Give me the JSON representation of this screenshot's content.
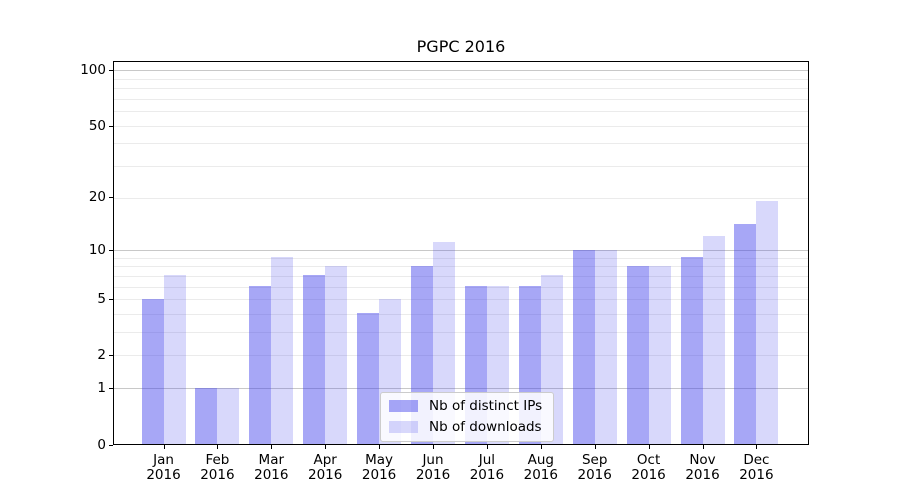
{
  "title": "PGPC 2016",
  "chart_data": {
    "type": "bar",
    "title": "PGPC 2016",
    "categories": [
      "Jan",
      "Feb",
      "Mar",
      "Apr",
      "May",
      "Jun",
      "Jul",
      "Aug",
      "Sep",
      "Oct",
      "Nov",
      "Dec"
    ],
    "x_year": "2016",
    "series": [
      {
        "name": "Nb of distinct IPs",
        "color": "rgba(60,60,234,0.45)",
        "values": [
          5,
          1,
          6,
          7,
          4,
          8,
          6,
          6,
          10,
          8,
          9,
          14
        ]
      },
      {
        "name": "Nb of downloads",
        "color": "rgba(60,60,234,0.20)",
        "values": [
          7,
          1,
          9,
          8,
          5,
          11,
          6,
          7,
          10,
          8,
          12,
          19
        ]
      }
    ],
    "yscale": "log1p",
    "ylim": [
      0,
      112
    ],
    "y_ticks": [
      100,
      50,
      20,
      10,
      5,
      2,
      1,
      0
    ],
    "gridlines": {
      "emphasis": [
        1,
        10,
        100
      ],
      "normal": [
        2,
        3,
        4,
        5,
        6,
        7,
        8,
        9,
        20,
        30,
        40,
        50,
        60,
        70,
        80,
        90
      ]
    },
    "legend": {
      "position": "lower center"
    },
    "colors": {
      "bar_dark": "rgba(60,60,234,0.45)",
      "bar_light": "rgba(60,60,234,0.20)",
      "grid_emphasis": "#c8c8c8",
      "grid_normal": "#ebebeb",
      "axis": "#000000",
      "background": "#ffffff"
    }
  }
}
